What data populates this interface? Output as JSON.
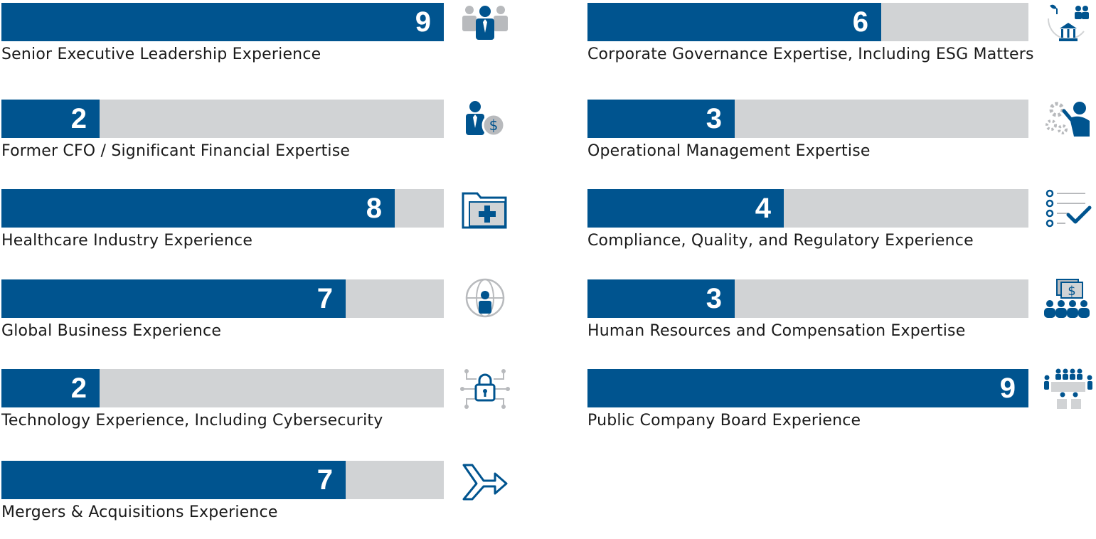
{
  "colors": {
    "fill": "#00548f",
    "track": "#d1d3d5",
    "icon_gray": "#b8babd"
  },
  "chart_data": {
    "type": "bar",
    "orientation": "horizontal",
    "scale_max": 9,
    "categories": [
      "Senior Executive Leadership Experience",
      "Former CFO / Significant Financial Expertise",
      "Healthcare Industry Experience",
      "Global Business Experience",
      "Technology Experience, Including Cybersecurity",
      "Mergers & Acquisitions Experience",
      "Corporate Governance Expertise, Including ESG Matters",
      "Operational Management Expertise",
      "Compliance, Quality, and Regulatory Experience",
      "Human Resources and Compensation Expertise",
      "Public Company Board Experience"
    ],
    "values": [
      9,
      2,
      8,
      7,
      2,
      7,
      6,
      3,
      4,
      3,
      9
    ],
    "icons": [
      "executive-team-icon",
      "person-dollar-icon",
      "medical-folder-icon",
      "globe-person-icon",
      "circuit-lock-icon",
      "merge-arrow-icon",
      "governance-bank-icon",
      "gears-person-icon",
      "checklist-icon",
      "group-dollar-icon",
      "boardroom-icon"
    ]
  }
}
